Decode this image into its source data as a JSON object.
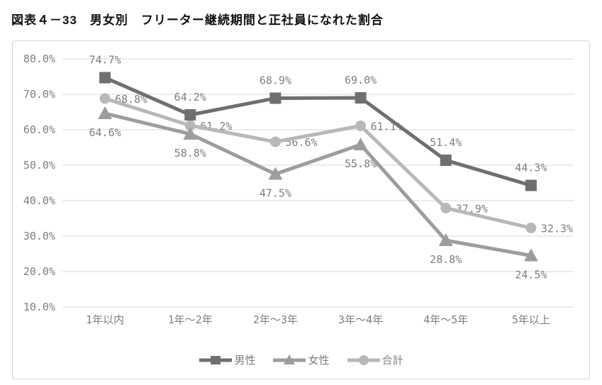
{
  "figure": {
    "title": "図表４－33　男女別　フリーター継続期間と正社員になれた割合"
  },
  "chart_data": {
    "type": "line",
    "title": "図表４－33　男女別　フリーター継続期間と正社員になれた割合",
    "categories": [
      "1年以内",
      "1年～2年",
      "2年～3年",
      "3年～4年",
      "4年～5年",
      "5年以上"
    ],
    "series": [
      {
        "id": "male",
        "name": "男性",
        "marker": "square",
        "color": "#6f6f6f",
        "values": [
          74.7,
          64.2,
          68.9,
          69.0,
          51.4,
          44.3
        ]
      },
      {
        "id": "female",
        "name": "女性",
        "marker": "triangle",
        "color": "#9d9d9d",
        "values": [
          64.6,
          58.8,
          47.5,
          55.8,
          28.8,
          24.5
        ]
      },
      {
        "id": "total",
        "name": "合計",
        "marker": "circle",
        "color": "#b8b8b8",
        "values": [
          68.8,
          61.2,
          56.6,
          61.1,
          37.9,
          32.3
        ]
      }
    ],
    "ylim": [
      10,
      80
    ],
    "ytick_values": [
      80,
      70,
      60,
      50,
      40,
      30,
      20,
      10
    ],
    "ytick_labels": [
      "80.0%",
      "70.0%",
      "60.0%",
      "50.0%",
      "40.0%",
      "30.0%",
      "20.0%",
      "10.0%"
    ],
    "data_label_suffix": "%",
    "grid": true,
    "legend_position": "bottom",
    "colors": {
      "grid": "#d9d9d9",
      "axis_text": "#7f7f7f",
      "panel_border": "#d6d6d6",
      "title_text": "#111111"
    }
  }
}
